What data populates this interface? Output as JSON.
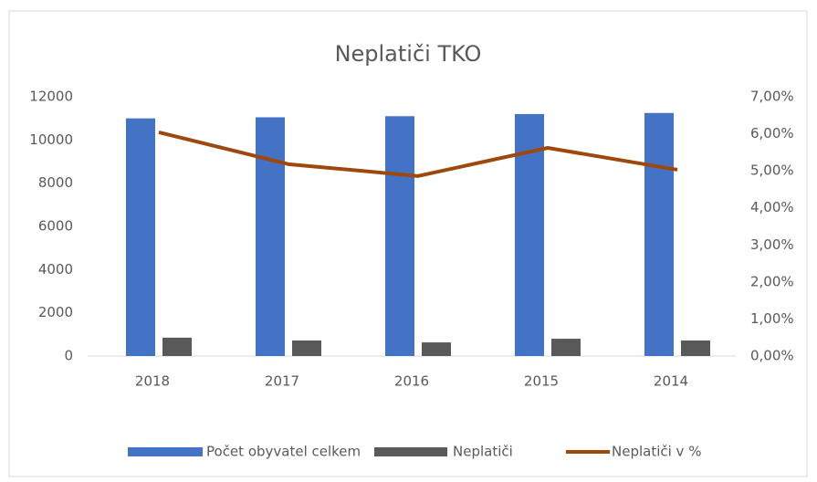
{
  "chart_data": {
    "type": "bar",
    "title": "Neplatiči TKO",
    "categories": [
      "2018",
      "2017",
      "2016",
      "2015",
      "2014"
    ],
    "series": [
      {
        "name": "Počet obyvatel  celkem",
        "color": "#4472c4",
        "type": "bar",
        "values": [
          11000,
          11050,
          11100,
          11200,
          11250
        ]
      },
      {
        "name": "Neplatiči",
        "color": "#595959",
        "type": "bar",
        "values": [
          850,
          720,
          630,
          800,
          720
        ]
      },
      {
        "name": "Neplatiči v %",
        "color": "#9e480e",
        "type": "line",
        "axis": "y2",
        "values": [
          6.04,
          5.18,
          4.86,
          5.62,
          5.03
        ]
      }
    ],
    "ylim": [
      0,
      12000
    ],
    "yticks": [
      0,
      2000,
      4000,
      6000,
      8000,
      10000,
      12000
    ],
    "y2lim": [
      0,
      7
    ],
    "y2ticks": [
      {
        "value": 0,
        "label": "0,00%"
      },
      {
        "value": 1,
        "label": "1,00%"
      },
      {
        "value": 2,
        "label": "2,00%"
      },
      {
        "value": 3,
        "label": "3,00%"
      },
      {
        "value": 4,
        "label": "4,00%"
      },
      {
        "value": 5,
        "label": "5,00%"
      },
      {
        "value": 6,
        "label": "6,00%"
      },
      {
        "value": 7,
        "label": "7,00%"
      }
    ],
    "grid": false,
    "legend": "bottom"
  }
}
